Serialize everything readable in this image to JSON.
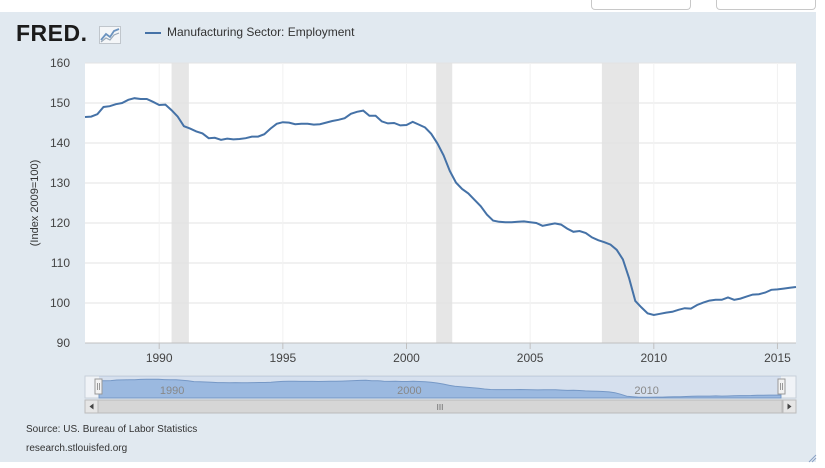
{
  "topbar": {
    "button1": "",
    "button2": ""
  },
  "logo": {
    "text": "FRED",
    "dot": "."
  },
  "legend": {
    "label": "Manufacturing Sector: Employment"
  },
  "source": "Source: US. Bureau of Labor Statistics",
  "site": "research.stlouisfed.org",
  "colors": {
    "line": "#4572a7",
    "recession": "#e6e6e6",
    "navigator": "#a8c4e6"
  },
  "navigator": {
    "ticks": [
      "1990",
      "2000",
      "2010"
    ],
    "scroll_grip": "III"
  },
  "chart_data": {
    "type": "line",
    "title": "",
    "xlabel": "",
    "ylabel": "(Index 2009=100)",
    "xlim": [
      1987.0,
      2015.75
    ],
    "ylim": [
      90,
      160
    ],
    "yticks": [
      90,
      100,
      110,
      120,
      130,
      140,
      150,
      160
    ],
    "xticks": [
      1990,
      1995,
      2000,
      2005,
      2010,
      2015
    ],
    "xtick_labels": [
      "1990",
      "1995",
      "2000",
      "2005",
      "2010",
      "2015"
    ],
    "ytick_labels": [
      "90",
      "100",
      "110",
      "120",
      "130",
      "140",
      "150",
      "160"
    ],
    "recessions": [
      [
        1990.5,
        1991.2
      ],
      [
        2001.2,
        2001.85
      ],
      [
        2007.9,
        2009.4
      ]
    ],
    "series": [
      {
        "name": "Manufacturing Sector: Employment",
        "x": [
          1987.0,
          1987.25,
          1987.5,
          1987.75,
          1988.0,
          1988.25,
          1988.5,
          1988.75,
          1989.0,
          1989.25,
          1989.5,
          1989.75,
          1990.0,
          1990.25,
          1990.5,
          1990.75,
          1991.0,
          1991.25,
          1991.5,
          1991.75,
          1992.0,
          1992.25,
          1992.5,
          1992.75,
          1993.0,
          1993.25,
          1993.5,
          1993.75,
          1994.0,
          1994.25,
          1994.5,
          1994.75,
          1995.0,
          1995.25,
          1995.5,
          1995.75,
          1996.0,
          1996.25,
          1996.5,
          1996.75,
          1997.0,
          1997.25,
          1997.5,
          1997.75,
          1998.0,
          1998.25,
          1998.5,
          1998.75,
          1999.0,
          1999.25,
          1999.5,
          1999.75,
          2000.0,
          2000.25,
          2000.5,
          2000.75,
          2001.0,
          2001.25,
          2001.5,
          2001.75,
          2002.0,
          2002.25,
          2002.5,
          2002.75,
          2003.0,
          2003.25,
          2003.5,
          2003.75,
          2004.0,
          2004.25,
          2004.5,
          2004.75,
          2005.0,
          2005.25,
          2005.5,
          2005.75,
          2006.0,
          2006.25,
          2006.5,
          2006.75,
          2007.0,
          2007.25,
          2007.5,
          2007.75,
          2008.0,
          2008.25,
          2008.5,
          2008.75,
          2009.0,
          2009.25,
          2009.5,
          2009.75,
          2010.0,
          2010.25,
          2010.5,
          2010.75,
          2011.0,
          2011.25,
          2011.5,
          2011.75,
          2012.0,
          2012.25,
          2012.5,
          2012.75,
          2013.0,
          2013.25,
          2013.5,
          2013.75,
          2014.0,
          2014.25,
          2014.5,
          2014.75,
          2015.0,
          2015.25,
          2015.5,
          2015.75
        ],
        "values": [
          146.5,
          146.6,
          147.2,
          149.0,
          149.2,
          149.7,
          150.0,
          150.8,
          151.2,
          151.0,
          151.0,
          150.3,
          149.5,
          149.6,
          148.2,
          146.6,
          144.2,
          143.6,
          142.9,
          142.4,
          141.2,
          141.3,
          140.8,
          141.1,
          140.9,
          141.0,
          141.2,
          141.6,
          141.6,
          142.2,
          143.6,
          144.8,
          145.2,
          145.1,
          144.7,
          144.8,
          144.8,
          144.6,
          144.7,
          145.1,
          145.5,
          145.8,
          146.2,
          147.3,
          147.8,
          148.1,
          146.8,
          146.8,
          145.4,
          144.9,
          145.0,
          144.4,
          144.5,
          145.3,
          144.6,
          143.9,
          142.3,
          139.9,
          136.9,
          133.0,
          130.1,
          128.5,
          127.4,
          125.8,
          124.2,
          122.1,
          120.6,
          120.3,
          120.2,
          120.2,
          120.3,
          120.4,
          120.2,
          120.0,
          119.3,
          119.6,
          119.9,
          119.6,
          118.6,
          117.8,
          118.0,
          117.5,
          116.4,
          115.7,
          115.2,
          114.6,
          113.3,
          110.9,
          106.2,
          100.5,
          98.9,
          97.4,
          97.0,
          97.3,
          97.6,
          97.8,
          98.3,
          98.7,
          98.6,
          99.5,
          100.1,
          100.6,
          100.8,
          100.8,
          101.4,
          100.8,
          101.1,
          101.6,
          102.1,
          102.2,
          102.6,
          103.3,
          103.4,
          103.6,
          103.8,
          104.0
        ]
      }
    ]
  }
}
